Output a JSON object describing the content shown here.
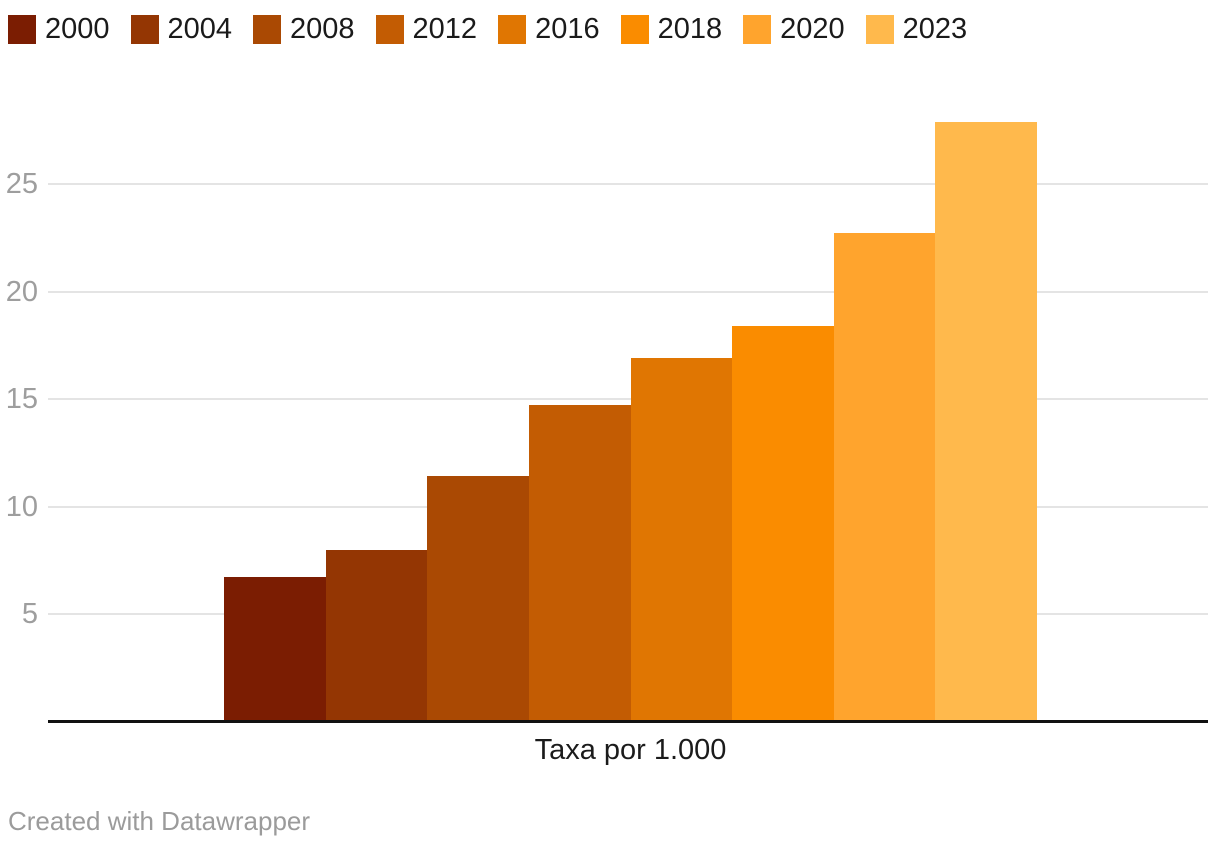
{
  "chart_data": {
    "type": "bar",
    "categories": [
      "2000",
      "2004",
      "2008",
      "2012",
      "2016",
      "2018",
      "2020",
      "2023"
    ],
    "values": [
      6.7,
      8.0,
      11.4,
      14.7,
      16.9,
      18.4,
      22.7,
      27.9
    ],
    "bar_colors": [
      "#7b1d02",
      "#943603",
      "#aa4903",
      "#c35c03",
      "#e07602",
      "#fa8c00",
      "#ffa42d",
      "#ffb94c"
    ],
    "title": "",
    "xlabel": "Taxa por 1.000",
    "ylabel": "",
    "ylim": [
      0,
      28
    ],
    "yticks": [
      5,
      10,
      15,
      20,
      25
    ],
    "grid": true,
    "legend_position": "top-left"
  },
  "legend": {
    "items": [
      {
        "label": "2000",
        "color": "#7b1d02"
      },
      {
        "label": "2004",
        "color": "#943603"
      },
      {
        "label": "2008",
        "color": "#aa4903"
      },
      {
        "label": "2012",
        "color": "#c35c03"
      },
      {
        "label": "2016",
        "color": "#e07602"
      },
      {
        "label": "2018",
        "color": "#fa8c00"
      },
      {
        "label": "2020",
        "color": "#ffa42d"
      },
      {
        "label": "2023",
        "color": "#ffb94c"
      }
    ]
  },
  "footer": {
    "credit": "Created with Datawrapper"
  },
  "colors": {
    "background": "#ffffff",
    "gridline": "#e4e4e4",
    "tick_label": "#9e9e9e",
    "axis_line": "#111111",
    "text": "#1a1a1a",
    "footer_text": "#9b9b9b"
  }
}
